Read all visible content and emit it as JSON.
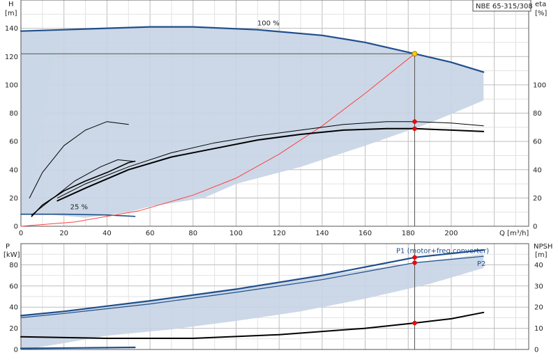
{
  "chart_data": [
    {
      "type": "line",
      "title": "",
      "model_label": "NBE 65-315/308",
      "xlabel": "Q [m³/h]",
      "ylabel_left": "H",
      "ylabel_left_unit": "[m]",
      "ylabel_right": "eta",
      "ylabel_right_unit": "[%]",
      "xlim": [
        0,
        236
      ],
      "ylim": [
        0,
        160
      ],
      "x_ticks": [
        "0",
        "20",
        "40",
        "60",
        "80",
        "100",
        "120",
        "140",
        "160",
        "180",
        "200"
      ],
      "y_ticks_left": [
        "0",
        "20",
        "40",
        "60",
        "80",
        "100",
        "120",
        "140"
      ],
      "y_ticks_right": [
        "0",
        "20",
        "40",
        "60",
        "80",
        "100"
      ],
      "curve_labels": [
        {
          "text": "100 %",
          "x": 115,
          "y": 142
        },
        {
          "text": "25 %",
          "x": 27,
          "y": 12
        }
      ],
      "operating_area": {
        "upper": [
          [
            0,
            138
          ],
          [
            20,
            139
          ],
          [
            60,
            141
          ],
          [
            80,
            141
          ],
          [
            110,
            139
          ],
          [
            140,
            135
          ],
          [
            160,
            130
          ],
          [
            183,
            122
          ],
          [
            200,
            116
          ],
          [
            215,
            109
          ]
        ],
        "lower": [
          [
            215,
            89
          ],
          [
            190,
            73
          ],
          [
            160,
            57
          ],
          [
            130,
            42
          ],
          [
            100,
            30
          ],
          [
            85,
            20
          ],
          [
            60,
            14
          ],
          [
            50,
            10
          ],
          [
            30,
            6
          ],
          [
            15,
            8
          ],
          [
            0,
            8
          ]
        ]
      },
      "light_area": {
        "upper": [
          [
            0,
            138
          ],
          [
            20,
            139
          ]
        ],
        "lower": [
          [
            20,
            139
          ],
          [
            15,
            118
          ],
          [
            12,
            90
          ],
          [
            8,
            55
          ],
          [
            4,
            30
          ],
          [
            0,
            10
          ]
        ]
      },
      "series": [
        {
          "name": "",
          "role": "head-100",
          "color": "#1f4e8c",
          "width": 2.2,
          "points": [
            [
              0,
              138
            ],
            [
              20,
              139
            ],
            [
              60,
              141
            ],
            [
              80,
              141
            ],
            [
              110,
              139
            ],
            [
              140,
              135
            ],
            [
              160,
              130
            ],
            [
              183,
              122
            ],
            [
              200,
              116
            ],
            [
              215,
              109
            ]
          ]
        },
        {
          "name": "",
          "role": "head-25",
          "color": "#1f4e8c",
          "width": 1.6,
          "points": [
            [
              0,
              8.5
            ],
            [
              20,
              8.5
            ],
            [
              40,
              8
            ],
            [
              53,
              7
            ]
          ]
        },
        {
          "name": "",
          "role": "system",
          "color": "#ff4040",
          "width": 1,
          "points": [
            [
              0,
              0
            ],
            [
              25,
              3
            ],
            [
              55,
              11
            ],
            [
              80,
              22
            ],
            [
              100,
              34
            ],
            [
              120,
              51
            ],
            [
              140,
              71
            ],
            [
              160,
              94
            ],
            [
              183,
              122
            ]
          ]
        },
        {
          "name": "",
          "role": "eta-1",
          "color": "#000000",
          "width": 1,
          "points": [
            [
              17,
              20
            ],
            [
              30,
              30
            ],
            [
              50,
              42
            ],
            [
              70,
              52
            ],
            [
              90,
              59
            ],
            [
              110,
              64
            ],
            [
              130,
              68
            ],
            [
              150,
              72
            ],
            [
              170,
              74
            ],
            [
              183,
              74
            ],
            [
              200,
              73
            ],
            [
              215,
              71
            ]
          ]
        },
        {
          "name": "",
          "role": "eta-2",
          "color": "#000000",
          "width": 2,
          "points": [
            [
              17,
              18
            ],
            [
              30,
              27
            ],
            [
              50,
              40
            ],
            [
              70,
              49
            ],
            [
              90,
              55
            ],
            [
              110,
              61
            ],
            [
              130,
              65
            ],
            [
              150,
              68
            ],
            [
              170,
              69
            ],
            [
              183,
              69
            ],
            [
              200,
              68
            ],
            [
              215,
              67
            ]
          ]
        },
        {
          "name": "",
          "role": "eta-3",
          "color": "#000000",
          "width": 1,
          "points": [
            [
              5,
              8
            ],
            [
              15,
              20
            ],
            [
              25,
              32
            ],
            [
              37,
              42
            ],
            [
              45,
              47
            ],
            [
              52,
              46
            ]
          ]
        },
        {
          "name": "",
          "role": "eta-4",
          "color": "#000000",
          "width": 1,
          "points": [
            [
              4,
              20
            ],
            [
              10,
              38
            ],
            [
              20,
              57
            ],
            [
              30,
              68
            ],
            [
              40,
              74
            ],
            [
              50,
              72
            ]
          ]
        },
        {
          "name": "",
          "role": "eta-5",
          "color": "#000000",
          "width": 1.6,
          "points": [
            [
              5,
              7
            ],
            [
              10,
              15
            ],
            [
              20,
              25
            ],
            [
              30,
              32
            ],
            [
              40,
              38
            ],
            [
              50,
              45
            ],
            [
              53,
              46
            ]
          ]
        }
      ],
      "duty_point": {
        "x": 183,
        "y": 122,
        "color": "#ffcc00"
      },
      "markers": [
        {
          "x": 183,
          "y": 74
        },
        {
          "x": 183,
          "y": 69
        }
      ]
    },
    {
      "type": "line",
      "title": "",
      "xlabel": "",
      "ylabel_left": "P",
      "ylabel_left_unit": "[kW]",
      "ylabel_right": "NPSH",
      "ylabel_right_unit": "[m]",
      "xlim": [
        0,
        236
      ],
      "ylim": [
        0,
        100
      ],
      "y_ticks_left": [
        "0",
        "20",
        "40",
        "60",
        "80"
      ],
      "y_ticks_right": [
        "0",
        "10",
        "20",
        "30",
        "40"
      ],
      "series_labels": [
        {
          "text": "P1 (motor+freq.converter)",
          "x": 196,
          "y": 91
        },
        {
          "text": "P2",
          "x": 214,
          "y": 79
        }
      ],
      "operating_area": {
        "upper": [
          [
            0,
            32
          ],
          [
            20,
            36
          ],
          [
            60,
            46
          ],
          [
            100,
            57
          ],
          [
            140,
            70
          ],
          [
            183,
            82
          ],
          [
            215,
            90
          ]
        ],
        "lower": [
          [
            215,
            77
          ],
          [
            190,
            62
          ],
          [
            160,
            48
          ],
          [
            130,
            36
          ],
          [
            100,
            27
          ],
          [
            70,
            19
          ],
          [
            40,
            13
          ],
          [
            20,
            6
          ],
          [
            5,
            1
          ],
          [
            0,
            0
          ]
        ]
      },
      "series": [
        {
          "name": "P1 (motor+freq.converter)",
          "color": "#1f4e8c",
          "width": 2.2,
          "points": [
            [
              0,
              32
            ],
            [
              20,
              36
            ],
            [
              60,
              46
            ],
            [
              100,
              57
            ],
            [
              140,
              70
            ],
            [
              183,
              87
            ],
            [
              215,
              94
            ]
          ]
        },
        {
          "name": "P2",
          "color": "#1f4e8c",
          "width": 1.2,
          "points": [
            [
              0,
              30
            ],
            [
              20,
              34
            ],
            [
              60,
              43
            ],
            [
              100,
              54
            ],
            [
              140,
              66
            ],
            [
              183,
              82
            ],
            [
              215,
              88
            ]
          ]
        },
        {
          "name": "",
          "role": "p-25",
          "color": "#1f4e8c",
          "width": 2.2,
          "points": [
            [
              0,
              1
            ],
            [
              30,
              1.5
            ],
            [
              53,
              2
            ]
          ]
        },
        {
          "name": "",
          "role": "npsh",
          "color": "#000000",
          "width": 2,
          "points": [
            [
              0,
              12
            ],
            [
              40,
              10.5
            ],
            [
              80,
              10.5
            ],
            [
              120,
              14
            ],
            [
              160,
              20
            ],
            [
              183,
              25
            ],
            [
              200,
              29
            ],
            [
              215,
              35
            ]
          ]
        }
      ],
      "markers": [
        {
          "x": 183,
          "y": 87
        },
        {
          "x": 183,
          "y": 82
        },
        {
          "x": 183,
          "y": 25
        }
      ]
    }
  ]
}
